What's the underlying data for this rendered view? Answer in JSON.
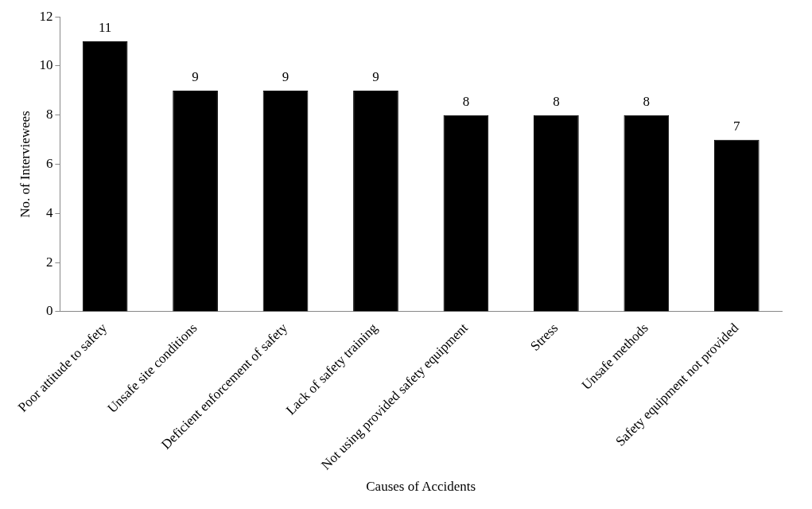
{
  "chart_data": {
    "type": "bar",
    "xlabel": "Causes of Accidents",
    "ylabel": "No. of Interviewees",
    "categories": [
      "Poor attitude to safety",
      "Unsafe site conditions",
      "Deficient enforcement of safety",
      "Lack of safety training",
      "Not using provided safety equipment",
      "Stress",
      "Unsafe methods",
      "Safety equipment not provided"
    ],
    "values": [
      11,
      9,
      9,
      9,
      8,
      8,
      8,
      7
    ],
    "color": "#000000",
    "ylim": [
      0,
      12
    ],
    "yticks": [
      0,
      2,
      4,
      6,
      8,
      10,
      12
    ],
    "grid": false,
    "legend": false,
    "data_labels": true
  }
}
